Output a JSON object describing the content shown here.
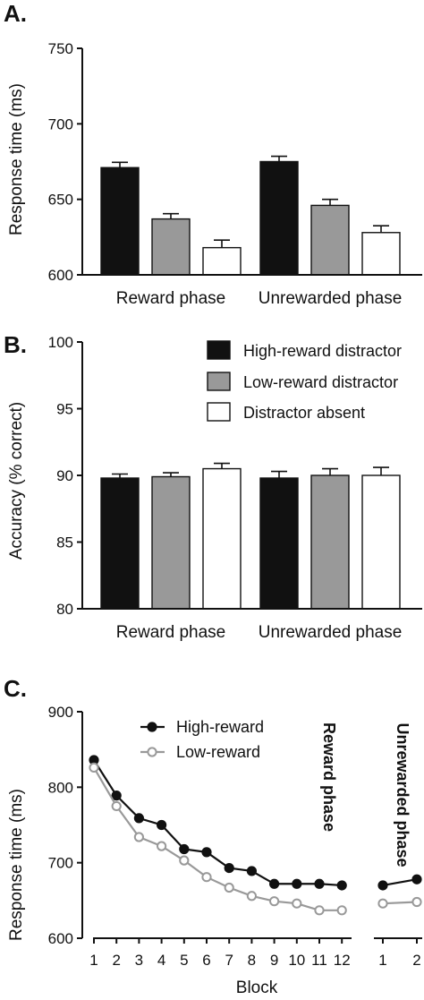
{
  "colors": {
    "high": "#111111",
    "low": "#999999",
    "absent": "#ffffff",
    "outline": "#111111"
  },
  "legend_b": [
    "High-reward distractor",
    "Low-reward distractor",
    "Distractor absent"
  ],
  "legend_c": [
    "High-reward",
    "Low-reward"
  ],
  "chart_data": [
    {
      "panel": "A.",
      "type": "bar",
      "ylabel": "Response time (ms)",
      "ylim": [
        600,
        750
      ],
      "yticks": [
        600,
        650,
        700,
        750
      ],
      "categories": [
        "Reward phase",
        "Unrewarded phase"
      ],
      "series": [
        {
          "name": "High-reward distractor",
          "values": [
            671,
            675
          ],
          "errors": [
            3.5,
            3.5
          ]
        },
        {
          "name": "Low-reward distractor",
          "values": [
            637,
            646
          ],
          "errors": [
            3.5,
            4
          ]
        },
        {
          "name": "Distractor absent",
          "values": [
            618,
            628
          ],
          "errors": [
            5,
            4.5
          ]
        }
      ]
    },
    {
      "panel": "B.",
      "type": "bar",
      "ylabel": "Accuracy (% correct)",
      "ylim": [
        80,
        100
      ],
      "yticks": [
        80,
        85,
        90,
        95,
        100
      ],
      "categories": [
        "Reward phase",
        "Unrewarded phase"
      ],
      "series": [
        {
          "name": "High-reward distractor",
          "values": [
            89.8,
            89.8
          ],
          "errors": [
            0.3,
            0.5
          ]
        },
        {
          "name": "Low-reward distractor",
          "values": [
            89.9,
            90.0
          ],
          "errors": [
            0.3,
            0.5
          ]
        },
        {
          "name": "Distractor absent",
          "values": [
            90.5,
            90.0
          ],
          "errors": [
            0.4,
            0.6
          ]
        }
      ]
    },
    {
      "panel": "C.",
      "type": "line",
      "ylabel": "Response time  (ms)",
      "xlabel": "Block",
      "ylim": [
        600,
        900
      ],
      "yticks": [
        600,
        700,
        800,
        900
      ],
      "reward_phase": {
        "label": "Reward phase",
        "x": [
          1,
          2,
          3,
          4,
          5,
          6,
          7,
          8,
          9,
          10,
          11,
          12
        ],
        "series": [
          {
            "name": "High-reward",
            "values": [
              836,
              789,
              759,
              750,
              718,
              714,
              693,
              689,
              672,
              672,
              672,
              670
            ]
          },
          {
            "name": "Low-reward",
            "values": [
              826,
              775,
              734,
              722,
              703,
              681,
              667,
              656,
              649,
              646,
              637,
              637
            ]
          }
        ]
      },
      "unrewarded_phase": {
        "label": "Unrewarded phase",
        "x": [
          1,
          2
        ],
        "series": [
          {
            "name": "High-reward",
            "values": [
              670,
              678
            ]
          },
          {
            "name": "Low-reward",
            "values": [
              646,
              648
            ]
          }
        ]
      }
    }
  ]
}
